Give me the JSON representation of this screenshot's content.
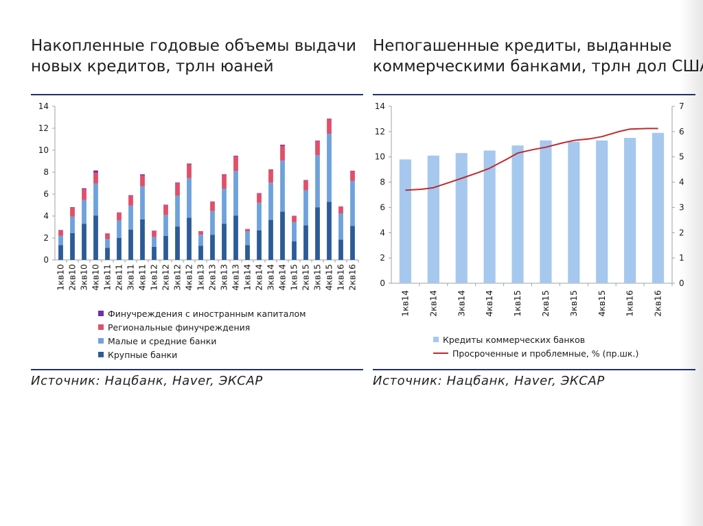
{
  "left": {
    "title_lines": [
      "Накопленные годовые объемы выдачи",
      "новых кредитов, трлн юаней"
    ],
    "source": "Источник: Нацбанк, Haver, ЭКСАР"
  },
  "right": {
    "title_lines": [
      "Непогашенные кредиты, выданные",
      "коммерческими банками, трлн дол США"
    ],
    "source": "Источник: Нацбанк, Haver, ЭКСАР"
  },
  "colors": {
    "foreign": "#7030a0",
    "regional": "#e0506a",
    "small_medium": "#6ea2dc",
    "large": "#2c5b98",
    "commercial_bar": "#a6c8ee",
    "overdue_line": "#c0282c",
    "rule": "#1f2f6e"
  },
  "chart_data": [
    {
      "type": "bar",
      "stacked": true,
      "title": "Накопленные годовые объемы выдачи новых кредитов, трлн юаней",
      "categories": [
        "1кв10",
        "2кв10",
        "3кв10",
        "4кв10",
        "1кв11",
        "2кв11",
        "3кв11",
        "4кв11",
        "1кв12",
        "2кв12",
        "3кв12",
        "4кв12",
        "1кв13",
        "2кв13",
        "3кв13",
        "4кв13",
        "1кв14",
        "2кв14",
        "3кв14",
        "4кв14",
        "1кв15",
        "2кв15",
        "3кв15",
        "4кв15",
        "1кв16",
        "2кв16"
      ],
      "ylim": [
        0,
        14
      ],
      "yticks": [
        0,
        2,
        4,
        6,
        8,
        10,
        12,
        14
      ],
      "legend_order": [
        3,
        2,
        1,
        0
      ],
      "series": [
        {
          "name": "Крупные банки",
          "color_key": "large",
          "values": [
            1.35,
            2.45,
            3.3,
            4.05,
            1.1,
            2.0,
            2.75,
            3.7,
            1.2,
            2.2,
            3.05,
            3.85,
            1.3,
            2.3,
            3.3,
            4.05,
            1.35,
            2.7,
            3.65,
            4.4,
            1.7,
            3.15,
            4.8,
            5.3,
            1.85,
            3.1
          ]
        },
        {
          "name": "Малые и средние банки",
          "color_key": "small_medium",
          "values": [
            0.85,
            1.5,
            2.15,
            2.9,
            0.8,
            1.6,
            2.2,
            3.0,
            0.9,
            1.9,
            2.8,
            3.6,
            1.0,
            2.15,
            3.2,
            4.05,
            1.25,
            2.5,
            3.4,
            4.65,
            1.75,
            3.2,
            4.75,
            6.2,
            2.4,
            4.1
          ]
        },
        {
          "name": "Региональные финучреждения",
          "color_key": "regional",
          "values": [
            0.5,
            0.8,
            1.0,
            1.0,
            0.5,
            0.7,
            0.9,
            1.0,
            0.55,
            0.9,
            1.15,
            1.25,
            0.3,
            0.85,
            1.25,
            1.35,
            0.2,
            0.85,
            1.15,
            1.35,
            0.55,
            0.9,
            1.3,
            1.35,
            0.6,
            0.9
          ]
        },
        {
          "name": "Финучреждения с иностранным капиталом",
          "color_key": "foreign",
          "values": [
            0.03,
            0.05,
            0.08,
            0.2,
            0.02,
            0.03,
            0.05,
            0.1,
            0.02,
            0.03,
            0.05,
            0.08,
            0.02,
            0.03,
            0.05,
            0.05,
            0.02,
            0.04,
            0.05,
            0.1,
            0.02,
            0.03,
            0.03,
            0.03,
            0.02,
            0.03
          ]
        }
      ]
    },
    {
      "type": "bar+line",
      "title": "Непогашенные кредиты, выданные коммерческими банками, трлн дол США",
      "categories": [
        "1кв14",
        "2кв14",
        "3кв14",
        "4кв14",
        "1кв15",
        "2кв15",
        "3кв15",
        "4кв15",
        "1кв16",
        "2кв16"
      ],
      "ylim": [
        0,
        14
      ],
      "yticks": [
        0,
        2,
        4,
        6,
        8,
        10,
        12,
        14
      ],
      "y2lim": [
        0,
        7
      ],
      "y2ticks": [
        0,
        1,
        2,
        3,
        4,
        5,
        6,
        7
      ],
      "series": [
        {
          "name": "Кредиты коммерческих банков",
          "type": "bar",
          "axis": "left",
          "color_key": "commercial_bar",
          "values": [
            9.8,
            10.1,
            10.3,
            10.5,
            10.9,
            11.3,
            11.2,
            11.3,
            11.5,
            11.9
          ]
        },
        {
          "name": "Просроченные и проблемные, % (пр.шк.)",
          "type": "line",
          "axis": "right",
          "color_key": "overdue_line",
          "x": [
            0,
            0.6,
            1,
            1.6,
            2,
            2.6,
            3,
            3.6,
            4,
            4.6,
            5,
            5.6,
            6,
            6.6,
            7,
            7.6,
            8,
            8.6,
            9
          ],
          "values": [
            3.68,
            3.72,
            3.78,
            4.0,
            4.15,
            4.38,
            4.55,
            4.9,
            5.15,
            5.3,
            5.38,
            5.55,
            5.65,
            5.72,
            5.8,
            6.0,
            6.1,
            6.12,
            6.12
          ]
        }
      ]
    }
  ]
}
